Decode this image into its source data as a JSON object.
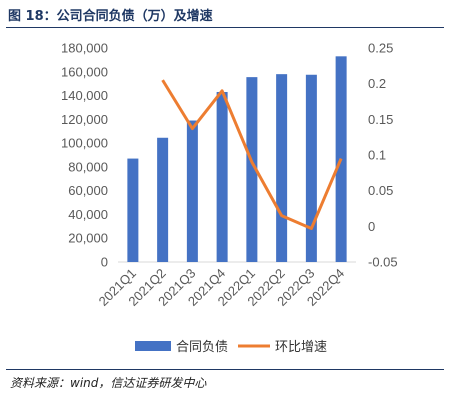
{
  "title": "图 18：公司合同负债（万）及增速",
  "source": "资料来源：wind，信达证券研发中心",
  "chart_data": {
    "type": "bar+line",
    "categories": [
      "2021Q1",
      "2021Q2",
      "2021Q3",
      "2021Q4",
      "2022Q1",
      "2022Q2",
      "2022Q3",
      "2022Q4"
    ],
    "series": [
      {
        "name": "合同负债",
        "type": "bar",
        "axis": "left",
        "color": "#4472c4",
        "values": [
          87000,
          104500,
          119000,
          143000,
          155500,
          158000,
          157500,
          173000
        ]
      },
      {
        "name": "环比增速",
        "type": "line",
        "axis": "right",
        "color": "#ed7d31",
        "values": [
          null,
          0.205,
          0.137,
          0.19,
          0.09,
          0.015,
          -0.003,
          0.095
        ]
      }
    ],
    "left_axis": {
      "min": 0,
      "max": 180000,
      "step": 20000,
      "tick_labels": [
        "0",
        "20,000",
        "40,000",
        "60,000",
        "80,000",
        "100,000",
        "120,000",
        "140,000",
        "160,000",
        "180,000"
      ]
    },
    "right_axis": {
      "min": -0.05,
      "max": 0.25,
      "step": 0.05,
      "tick_labels": [
        "-0.05",
        "0",
        "0.05",
        "0.1",
        "0.15",
        "0.2",
        "0.25"
      ]
    },
    "legend_position": "bottom",
    "grid": false
  }
}
